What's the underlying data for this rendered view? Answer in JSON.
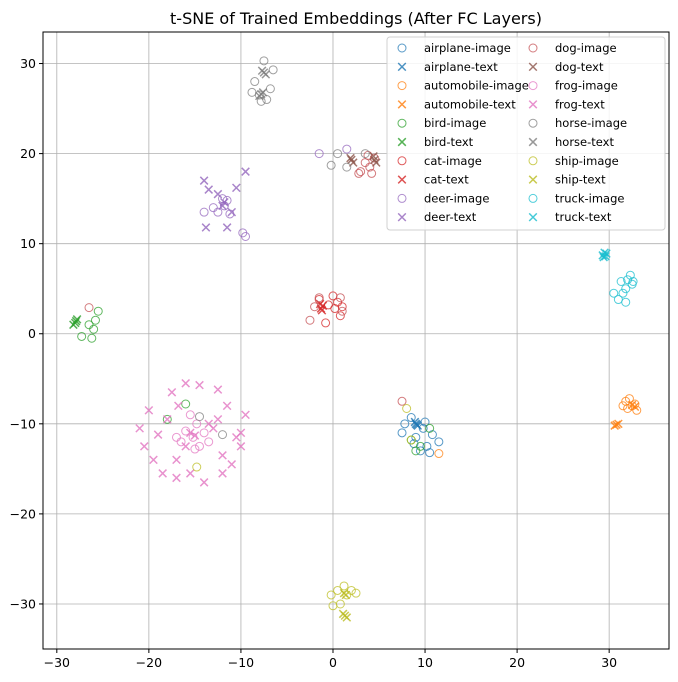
{
  "chart_data": {
    "type": "scatter",
    "title": "t-SNE of Trained Embeddings (After FC Layers)",
    "xlabel": "",
    "ylabel": "",
    "xlim": [
      -31.5,
      36.5
    ],
    "ylim": [
      -35,
      33.5
    ],
    "xticks": [
      -30,
      -20,
      -10,
      0,
      10,
      20,
      30
    ],
    "yticks": [
      -30,
      -20,
      -10,
      0,
      10,
      20,
      30
    ],
    "grid": true,
    "legend_position": "top-right",
    "legend_columns": 2,
    "series": [
      {
        "name": "airplane-image",
        "class": "airplane",
        "kind": "image",
        "color": "#1f77b4",
        "points": [
          [
            7.5,
            -11
          ],
          [
            8.5,
            -9.3
          ],
          [
            9.8,
            -10.5
          ],
          [
            10.2,
            -12.5
          ],
          [
            10.8,
            -11.2
          ],
          [
            8.8,
            -12.2
          ],
          [
            9.5,
            -13
          ],
          [
            10.5,
            -13.2
          ],
          [
            11.5,
            -12
          ],
          [
            7.8,
            -10
          ],
          [
            10,
            -9.8
          ],
          [
            9,
            -11.5
          ]
        ]
      },
      {
        "name": "airplane-text",
        "class": "airplane",
        "kind": "text",
        "color": "#1f77b4",
        "points": [
          [
            9,
            -10
          ],
          [
            9.2,
            -10.2
          ],
          [
            8.9,
            -9.8
          ],
          [
            9.1,
            -10.1
          ]
        ]
      },
      {
        "name": "automobile-image",
        "class": "automobile",
        "kind": "image",
        "color": "#ff7f0e",
        "points": [
          [
            31.8,
            -7.5
          ],
          [
            32.5,
            -8
          ],
          [
            33,
            -8.5
          ],
          [
            32,
            -8.3
          ],
          [
            31.5,
            -8
          ],
          [
            32.8,
            -7.8
          ],
          [
            11.5,
            -13.3
          ],
          [
            32.2,
            -7.2
          ]
        ]
      },
      {
        "name": "automobile-text",
        "class": "automobile",
        "kind": "text",
        "color": "#ff7f0e",
        "points": [
          [
            30.8,
            -10.1
          ],
          [
            31,
            -10
          ],
          [
            30.6,
            -10.2
          ],
          [
            32.5,
            -7.9
          ],
          [
            32.8,
            -8.1
          ]
        ]
      },
      {
        "name": "bird-image",
        "class": "bird",
        "kind": "image",
        "color": "#2ca02c",
        "points": [
          [
            -27.3,
            -0.3
          ],
          [
            -26.2,
            -0.5
          ],
          [
            -25.8,
            1.5
          ],
          [
            -26,
            0.5
          ],
          [
            -25.5,
            2.5
          ],
          [
            -26.5,
            1
          ],
          [
            -18,
            -9.5
          ],
          [
            -16,
            -7.8
          ],
          [
            8.5,
            -11.8
          ],
          [
            9,
            -13
          ],
          [
            10.5,
            -10.5
          ],
          [
            9.5,
            -12.5
          ]
        ]
      },
      {
        "name": "bird-text",
        "class": "bird",
        "kind": "text",
        "color": "#2ca02c",
        "points": [
          [
            -28,
            1.2
          ],
          [
            -27.8,
            1.6
          ],
          [
            -28.2,
            1.0
          ],
          [
            -27.9,
            1.4
          ]
        ]
      },
      {
        "name": "cat-image",
        "class": "cat",
        "kind": "image",
        "color": "#d62728",
        "points": [
          [
            0,
            4.2
          ],
          [
            0.5,
            3.5
          ],
          [
            1,
            3
          ],
          [
            0.8,
            2
          ],
          [
            -0.8,
            1.2
          ],
          [
            -1.5,
            3.8
          ],
          [
            0.2,
            2.8
          ],
          [
            -0.5,
            3.2
          ]
        ]
      },
      {
        "name": "cat-text",
        "class": "cat",
        "kind": "text",
        "color": "#d62728",
        "points": [
          [
            -1.3,
            2.8
          ],
          [
            -1.1,
            3.1
          ],
          [
            -1.4,
            3.3
          ],
          [
            -1.2,
            2.6
          ]
        ]
      },
      {
        "name": "deer-image",
        "class": "deer",
        "kind": "image",
        "color": "#9467bd",
        "points": [
          [
            -11.8,
            14.2
          ],
          [
            -11.5,
            14.8
          ],
          [
            -12.5,
            13.5
          ],
          [
            -13,
            14
          ],
          [
            -9.8,
            11.2
          ],
          [
            -9.5,
            10.8
          ],
          [
            -12,
            15
          ],
          [
            -14,
            13.5
          ],
          [
            1.5,
            20.5
          ],
          [
            -1.5,
            20
          ],
          [
            -11.2,
            13.3
          ]
        ]
      },
      {
        "name": "deer-text",
        "class": "deer",
        "kind": "text",
        "color": "#9467bd",
        "points": [
          [
            -14,
            17
          ],
          [
            -13.5,
            16
          ],
          [
            -11.5,
            11.8
          ],
          [
            -13.8,
            11.8
          ],
          [
            -12,
            14.2
          ],
          [
            -11.8,
            14.6
          ],
          [
            -9.5,
            18
          ],
          [
            -12.5,
            15.5
          ],
          [
            -10.5,
            16.2
          ],
          [
            -11,
            13.5
          ]
        ]
      },
      {
        "name": "dog-image",
        "class": "dog",
        "kind": "image",
        "color": "#c44e52",
        "points": [
          [
            3,
            18
          ],
          [
            4,
            18.5
          ],
          [
            4.5,
            19.5
          ],
          [
            3.5,
            19
          ],
          [
            2.8,
            17.8
          ],
          [
            -26.5,
            2.9
          ],
          [
            7.5,
            -7.5
          ],
          [
            4.2,
            17.8
          ],
          [
            3.8,
            19.8
          ],
          [
            -1.5,
            4
          ],
          [
            -2,
            3
          ],
          [
            -2.5,
            1.5
          ],
          [
            1,
            2.5
          ],
          [
            0.8,
            4
          ]
        ]
      },
      {
        "name": "dog-text",
        "class": "dog",
        "kind": "text",
        "color": "#8c564b",
        "points": [
          [
            2,
            19.3
          ],
          [
            2.2,
            19
          ],
          [
            1.9,
            19.5
          ],
          [
            4.5,
            19.3
          ],
          [
            4.7,
            19
          ],
          [
            4.4,
            19.7
          ]
        ]
      },
      {
        "name": "frog-image",
        "class": "frog",
        "kind": "image",
        "color": "#e377c2",
        "points": [
          [
            -16,
            -10.8
          ],
          [
            -15.2,
            -11.5
          ],
          [
            -14.5,
            -12.5
          ],
          [
            -14,
            -11
          ],
          [
            -16.5,
            -12
          ],
          [
            -15.5,
            -9
          ],
          [
            -14.8,
            -10
          ],
          [
            -13.5,
            -12
          ],
          [
            -17,
            -11.5
          ],
          [
            -15,
            -12.8
          ]
        ]
      },
      {
        "name": "frog-text",
        "class": "frog",
        "kind": "text",
        "color": "#e377c2",
        "points": [
          [
            -16,
            -5.5
          ],
          [
            -14.5,
            -5.7
          ],
          [
            -12.5,
            -6.2
          ],
          [
            -17.5,
            -6.5
          ],
          [
            -20,
            -8.5
          ],
          [
            -21,
            -10.5
          ],
          [
            -20.5,
            -12.5
          ],
          [
            -19.5,
            -14
          ],
          [
            -18.5,
            -15.5
          ],
          [
            -17,
            -16
          ],
          [
            -15.5,
            -15.5
          ],
          [
            -14,
            -16.5
          ],
          [
            -12,
            -15.5
          ],
          [
            -11,
            -14.5
          ],
          [
            -10,
            -12.5
          ],
          [
            -10,
            -11
          ],
          [
            -9.5,
            -9
          ],
          [
            -11.5,
            -8
          ],
          [
            -12.5,
            -9.5
          ],
          [
            -13.5,
            -10
          ],
          [
            -17,
            -14
          ],
          [
            -16,
            -12.5
          ],
          [
            -15.5,
            -11
          ],
          [
            -15,
            -11.3
          ],
          [
            -12,
            -13.5
          ],
          [
            -10.5,
            -11.5
          ],
          [
            -13,
            -10.5
          ],
          [
            -18,
            -9.5
          ],
          [
            -19,
            -11.2
          ],
          [
            -16.8,
            -8
          ]
        ]
      },
      {
        "name": "horse-image",
        "class": "horse",
        "kind": "image",
        "color": "#7f7f7f",
        "points": [
          [
            -7.5,
            30.3
          ],
          [
            -8.5,
            28
          ],
          [
            -8,
            26.5
          ],
          [
            -7.2,
            26
          ],
          [
            -6.8,
            27.2
          ],
          [
            -6.5,
            29.3
          ],
          [
            -7.8,
            25.8
          ],
          [
            -8.8,
            26.8
          ],
          [
            -12,
            -11.2
          ],
          [
            -14.5,
            -9.2
          ],
          [
            0.5,
            20
          ],
          [
            1.5,
            18.5
          ],
          [
            -0.2,
            18.7
          ],
          [
            3.5,
            20
          ]
        ]
      },
      {
        "name": "horse-text",
        "class": "horse",
        "kind": "text",
        "color": "#7f7f7f",
        "points": [
          [
            -7.5,
            29
          ],
          [
            -7.3,
            28.8
          ],
          [
            -7.7,
            29.2
          ],
          [
            -7.8,
            26.6
          ],
          [
            -7.6,
            26.8
          ],
          [
            -8,
            26.4
          ]
        ]
      },
      {
        "name": "ship-image",
        "class": "ship",
        "kind": "image",
        "color": "#bcbd22",
        "points": [
          [
            0.5,
            -28.5
          ],
          [
            1.2,
            -28
          ],
          [
            2,
            -28.5
          ],
          [
            1.5,
            -29
          ],
          [
            0.8,
            -30
          ],
          [
            0,
            -30.2
          ],
          [
            -0.2,
            -29
          ],
          [
            2.5,
            -28.8
          ],
          [
            8,
            -8.3
          ],
          [
            8.5,
            -11.8
          ],
          [
            -14.8,
            -14.8
          ]
        ]
      },
      {
        "name": "ship-text",
        "class": "ship",
        "kind": "text",
        "color": "#bcbd22",
        "points": [
          [
            1.3,
            -31.3
          ],
          [
            1.5,
            -31.5
          ],
          [
            1.1,
            -31.1
          ],
          [
            1.4,
            -29
          ],
          [
            1.2,
            -28.8
          ]
        ]
      },
      {
        "name": "truck-image",
        "class": "truck",
        "kind": "image",
        "color": "#17becf",
        "points": [
          [
            32,
            6
          ],
          [
            32.5,
            5.5
          ],
          [
            31.8,
            5
          ],
          [
            31.5,
            4.5
          ],
          [
            30.5,
            4.5
          ],
          [
            31,
            3.8
          ],
          [
            31.8,
            3.5
          ],
          [
            32.3,
            6.5
          ],
          [
            31.3,
            5.8
          ],
          [
            32.6,
            5.8
          ]
        ]
      },
      {
        "name": "truck-text",
        "class": "truck",
        "kind": "text",
        "color": "#17becf",
        "points": [
          [
            29.5,
            9
          ],
          [
            29.3,
            8.7
          ],
          [
            29.7,
            8.9
          ],
          [
            29.4,
            8.5
          ],
          [
            29.6,
            8.6
          ]
        ]
      }
    ]
  }
}
